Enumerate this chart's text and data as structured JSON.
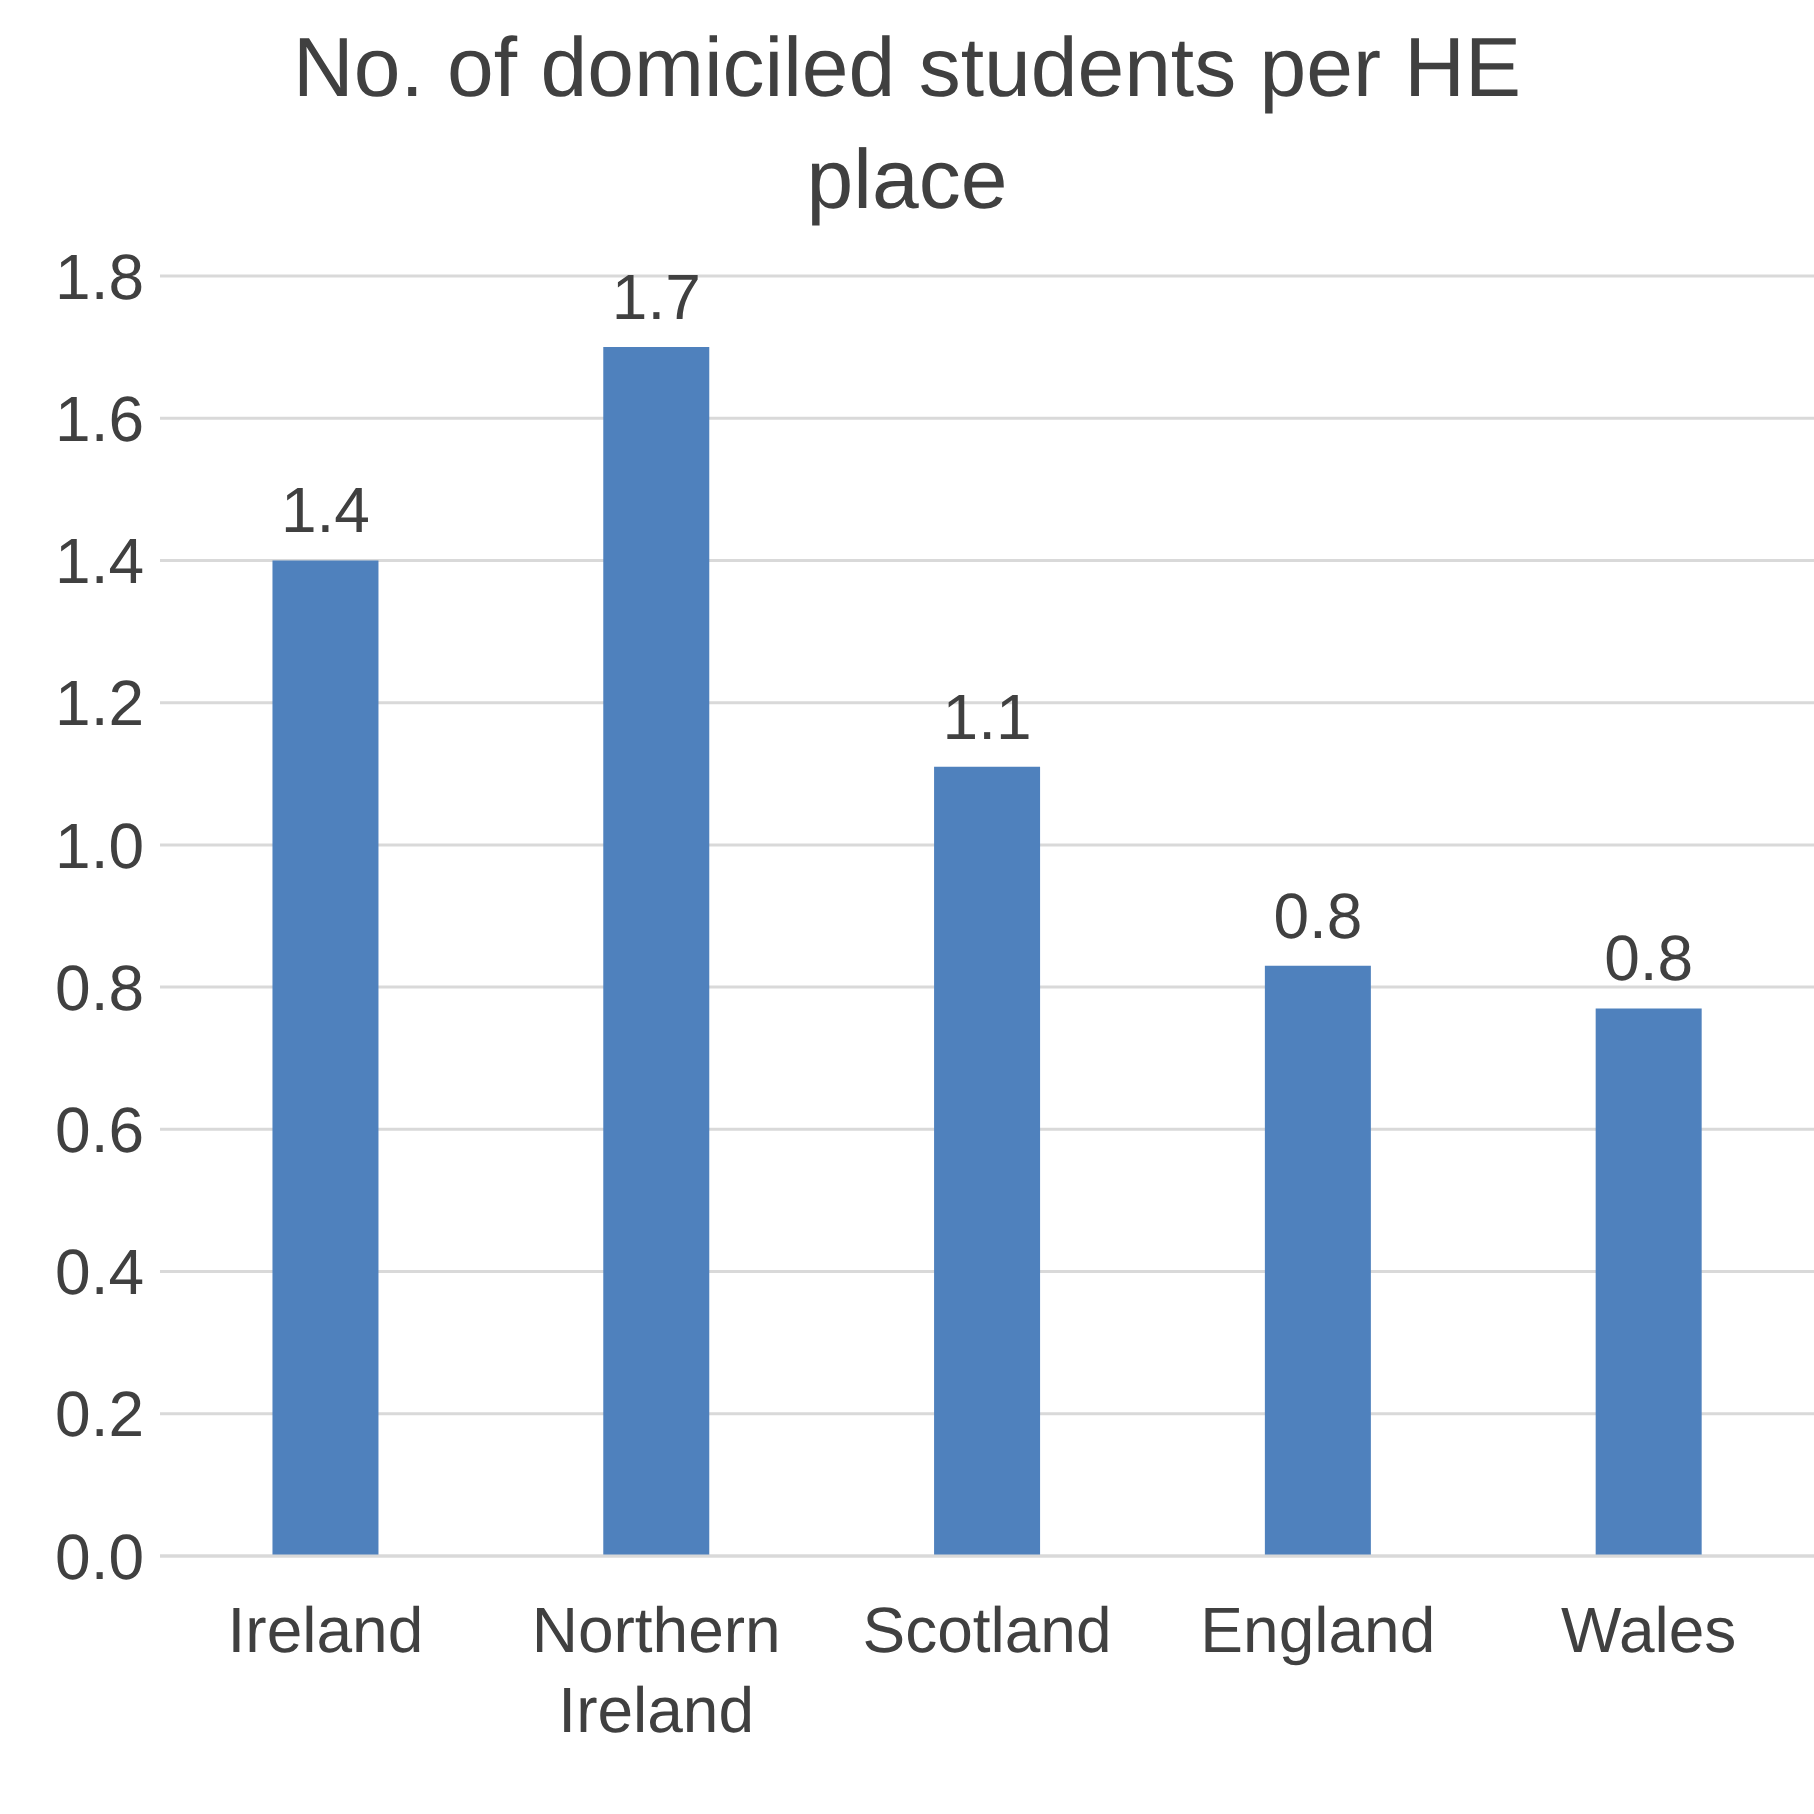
{
  "chart_data": {
    "type": "bar",
    "title": "No. of domiciled students per HE place",
    "categories": [
      "Ireland",
      "Northern Ireland",
      "Scotland",
      "England",
      "Wales"
    ],
    "values": [
      1.4,
      1.7,
      1.11,
      0.83,
      0.77
    ],
    "value_labels": [
      "1.4",
      "1.7",
      "1.1",
      "0.8",
      "0.8"
    ],
    "color": "#4f81bd",
    "ylim": [
      0,
      1.8
    ],
    "yticks": [
      {
        "value": 0,
        "label": "0.0"
      },
      {
        "value": 0.2,
        "label": "0.2"
      },
      {
        "value": 0.4,
        "label": "0.4"
      },
      {
        "value": 0.6,
        "label": "0.6"
      },
      {
        "value": 0.8,
        "label": "0.8"
      },
      {
        "value": 1,
        "label": "1.0"
      },
      {
        "value": 1.2,
        "label": "1.2"
      },
      {
        "value": 1.4,
        "label": "1.4"
      },
      {
        "value": 1.6,
        "label": "1.6"
      },
      {
        "value": 1.8,
        "label": "1.8"
      }
    ],
    "grid": "y",
    "legend": false
  }
}
